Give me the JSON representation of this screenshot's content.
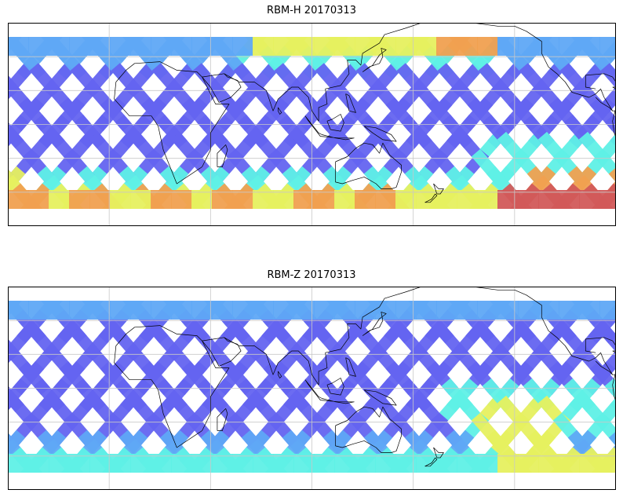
{
  "figure": {
    "panels": [
      {
        "id": "top",
        "title": "RBM-H 20170313"
      },
      {
        "id": "bottom",
        "title": "RBM-Z 20170313"
      }
    ]
  },
  "map": {
    "projection": "plate-carree",
    "central_longitude": 100,
    "lon_range": [
      -80,
      280
    ],
    "lat_range": [
      -60,
      60
    ],
    "gridlines": true,
    "grid_lons": [
      -20,
      40,
      100,
      160,
      220
    ],
    "grid_lats": [
      -40,
      -20,
      0,
      20,
      40
    ],
    "colormap": "jet",
    "colors": {
      "low": "#6464f0",
      "mid_low": "#5fa8f5",
      "mid": "#5ff0e6",
      "mid_high": "#e6f05f",
      "high": "#f0a050",
      "max": "#d25a5a",
      "coastline": "#000000",
      "grid": "#c8c8c8"
    }
  }
}
